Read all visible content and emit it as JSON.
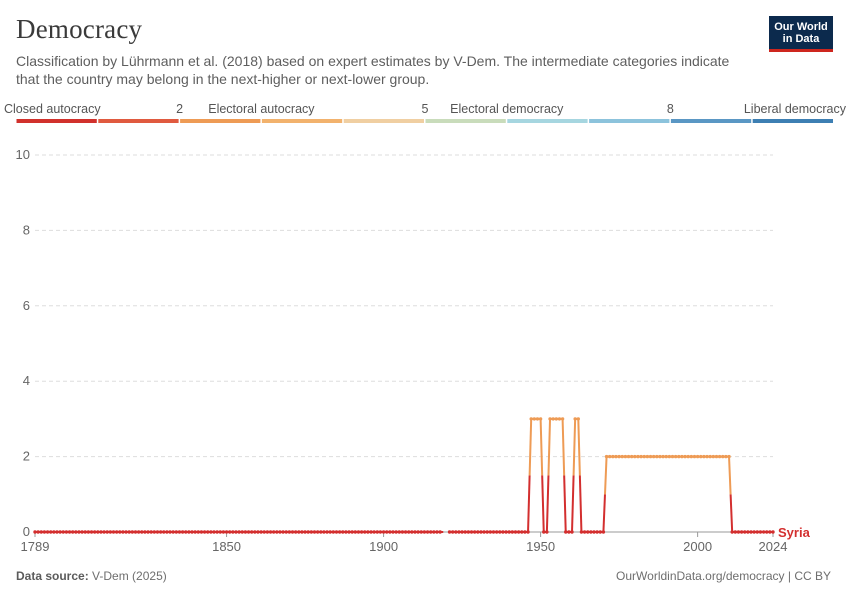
{
  "header": {
    "title": "Democracy",
    "subtitle": "Classification by Lührmann et al. (2018) based on expert estimates by V-Dem. The intermediate categories indicate that the country may belong in the next-higher or next-lower group."
  },
  "logo": {
    "line1": "Our World",
    "line2": "in Data"
  },
  "footer": {
    "source_label": "Data source:",
    "source_value": "V-Dem (2025)",
    "url": "OurWorldinData.org/democracy | CC BY"
  },
  "colors": {
    "accent_red": "#ce261e",
    "logo_bg": "#0c2a4d",
    "low": "#d32f2f",
    "mid": "#ee9b55"
  },
  "chart_data": {
    "type": "line",
    "title": "Democracy",
    "xlabel": "",
    "ylabel": "",
    "xlim": [
      1789,
      2024
    ],
    "ylim": [
      0,
      10
    ],
    "x_ticks": [
      1789,
      1850,
      1900,
      1950,
      2000,
      2024
    ],
    "y_ticks": [
      0,
      2,
      4,
      6,
      8,
      10
    ],
    "grid": true,
    "legend": {
      "position": "top",
      "labels": [
        {
          "text": "Closed autocracy",
          "segment": 0
        },
        {
          "text": "2",
          "segment": 2
        },
        {
          "text": "Electoral autocracy",
          "segment": 3
        },
        {
          "text": "5",
          "segment": 5
        },
        {
          "text": "Electoral democracy",
          "segment": 6
        },
        {
          "text": "8",
          "segment": 8
        },
        {
          "text": "Liberal democracy",
          "segment": 9
        }
      ],
      "scale_colors": [
        "#d1312c",
        "#e05a3f",
        "#ee9b55",
        "#f2b26d",
        "#f0cfa2",
        "#c9dcbb",
        "#a6d6e0",
        "#8cc3dc",
        "#5a97c4",
        "#3d7fb3"
      ]
    },
    "series": [
      {
        "name": "Syria",
        "color": "#d32f2f",
        "points": [
          [
            1789,
            0
          ],
          [
            1919,
            0
          ],
          [
            1921,
            0
          ],
          [
            1946,
            0
          ],
          [
            1947,
            3
          ],
          [
            1950,
            3
          ],
          [
            1951,
            0
          ],
          [
            1952,
            0
          ],
          [
            1953,
            3
          ],
          [
            1957,
            3
          ],
          [
            1958,
            0
          ],
          [
            1960,
            0
          ],
          [
            1961,
            3
          ],
          [
            1962,
            3
          ],
          [
            1963,
            0
          ],
          [
            1970,
            0
          ],
          [
            1971,
            2
          ],
          [
            2010,
            2
          ],
          [
            2011,
            0
          ],
          [
            2024,
            0
          ]
        ],
        "gap_after_years": [
          1919
        ]
      }
    ]
  }
}
